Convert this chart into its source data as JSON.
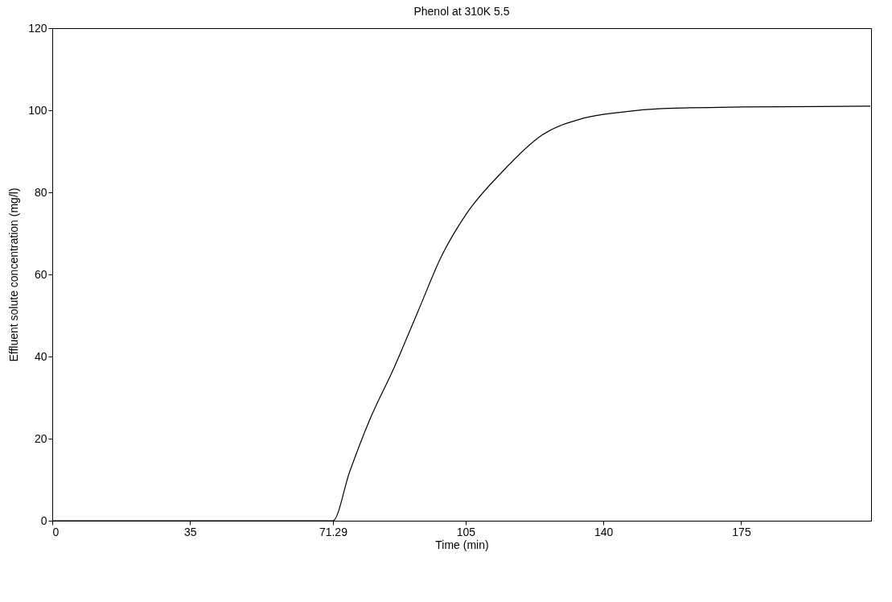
{
  "chart_data": {
    "type": "line",
    "title": "Phenol at 310K  5.5",
    "xlabel": "Time (min)",
    "ylabel": "Effluent solute concentration (mg/l)",
    "xlim": [
      0,
      208
    ],
    "ylim": [
      0,
      120
    ],
    "xticks": [
      0,
      35,
      71.29,
      105,
      140,
      175
    ],
    "yticks": [
      0,
      20,
      40,
      60,
      80,
      100,
      120
    ],
    "grid": false,
    "marker": "none",
    "line_style": "solid",
    "series": [
      {
        "color": "#000000",
        "x": [
          0,
          0,
          71.29,
          75.5,
          80.6,
          86.7,
          92.9,
          99,
          105,
          114.3,
          124.5,
          134.7,
          145,
          155,
          175.5,
          207.8
        ],
        "values": [
          10,
          0,
          0,
          11.8,
          24.5,
          37,
          51,
          64.7,
          74.5,
          85,
          94,
          98,
          99.6,
          100.4,
          100.8,
          101
        ]
      }
    ]
  }
}
